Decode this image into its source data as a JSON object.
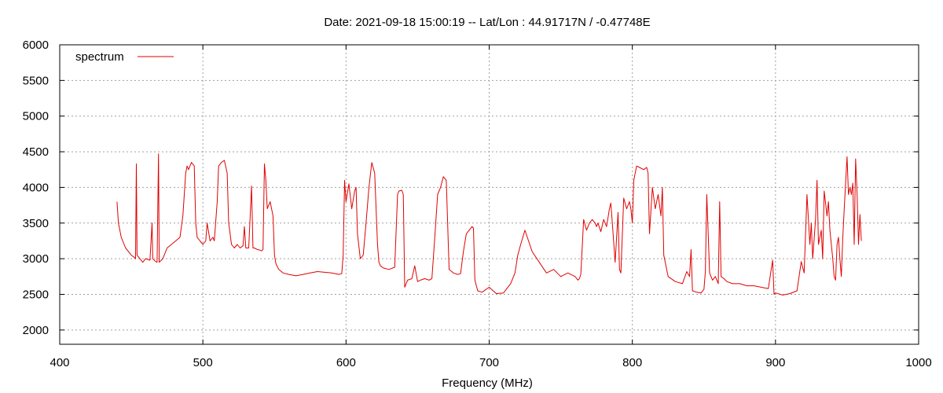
{
  "chart_data": {
    "type": "line",
    "title": "Date: 2021-09-18 15:00:19  --  Lat/Lon : 44.91717N / -0.47748E",
    "xlabel": "Frequency (MHz)",
    "ylabel": "",
    "xlim": [
      400,
      1000
    ],
    "ylim": [
      1800,
      6000
    ],
    "xticks": [
      400,
      500,
      600,
      700,
      800,
      900,
      1000
    ],
    "yticks": [
      2000,
      2500,
      3000,
      3500,
      4000,
      4500,
      5000,
      5500,
      6000
    ],
    "grid": true,
    "legend_position": "top-left",
    "series": [
      {
        "name": "spectrum",
        "color": "#e00000",
        "x": [
          440,
          441,
          443,
          446,
          450,
          452,
          453,
          453.5,
          454,
          456,
          458,
          460,
          463,
          464.5,
          465,
          467,
          468,
          469,
          469.5,
          470,
          472,
          475,
          478,
          481,
          484,
          486,
          487,
          488,
          489,
          490,
          492,
          494,
          495,
          496,
          498,
          500,
          502,
          503,
          505,
          507,
          508,
          510,
          511,
          513,
          515,
          517,
          518,
          520,
          522,
          524,
          526,
          528,
          529,
          530,
          532,
          534,
          535,
          536,
          538,
          540,
          541,
          542,
          543,
          544,
          545,
          547,
          549,
          550,
          551,
          553,
          556,
          560,
          565,
          570,
          575,
          580,
          585,
          590,
          595,
          597,
          598,
          599,
          600,
          602,
          604,
          606,
          607,
          608,
          610,
          612,
          614,
          616,
          618,
          620,
          622,
          623,
          624,
          626,
          630,
          634,
          636,
          637,
          639,
          640,
          641,
          643,
          646,
          648,
          650,
          652,
          655,
          658,
          660,
          662,
          664,
          666,
          668,
          670,
          672,
          675,
          678,
          680,
          682,
          684,
          686,
          688,
          689,
          690,
          692,
          695,
          700,
          705,
          710,
          715,
          718,
          720,
          722,
          725,
          730,
          735,
          740,
          745,
          750,
          755,
          760,
          762,
          763,
          764,
          766,
          768,
          770,
          772,
          774,
          775,
          776,
          778,
          780,
          782,
          784,
          785,
          786,
          788,
          790,
          791,
          792,
          794,
          796,
          798,
          799,
          800,
          801,
          803,
          805,
          808,
          810,
          811,
          812,
          814,
          816,
          818,
          820,
          821,
          822,
          825,
          830,
          835,
          838,
          840,
          841,
          842,
          845,
          848,
          850,
          851,
          852,
          854,
          856,
          858,
          860,
          861,
          862,
          864,
          866,
          870,
          875,
          880,
          885,
          890,
          895,
          898,
          899,
          900,
          905,
          910,
          915,
          918,
          920,
          922,
          924,
          925,
          926,
          928,
          929,
          930,
          932,
          933,
          934,
          936,
          937,
          938,
          940,
          941,
          942,
          943,
          944,
          945,
          946,
          947,
          948,
          950,
          951,
          952,
          953,
          954,
          955,
          956,
          957,
          958,
          959,
          960
        ],
        "values": [
          3800,
          3500,
          3300,
          3150,
          3050,
          3020,
          3000,
          4330,
          3050,
          3000,
          2950,
          3000,
          2980,
          3500,
          3000,
          2960,
          2950,
          4470,
          2950,
          2960,
          3000,
          3150,
          3200,
          3250,
          3300,
          3600,
          3900,
          4200,
          4300,
          4250,
          4350,
          4300,
          3500,
          3300,
          3250,
          3200,
          3250,
          3500,
          3250,
          3300,
          3250,
          3800,
          4300,
          4350,
          4380,
          4200,
          3500,
          3200,
          3150,
          3200,
          3150,
          3180,
          3450,
          3150,
          3150,
          4020,
          3150,
          3150,
          3130,
          3120,
          3110,
          3130,
          4330,
          4100,
          3700,
          3800,
          3600,
          3050,
          2930,
          2850,
          2800,
          2780,
          2760,
          2780,
          2800,
          2820,
          2810,
          2800,
          2780,
          2790,
          3050,
          4100,
          3800,
          4050,
          3700,
          3950,
          4000,
          3350,
          3000,
          3050,
          3500,
          4000,
          4350,
          4200,
          3200,
          2950,
          2900,
          2870,
          2850,
          2880,
          3900,
          3950,
          3960,
          3900,
          2600,
          2700,
          2720,
          2900,
          2680,
          2700,
          2720,
          2700,
          2720,
          3300,
          3900,
          4000,
          4150,
          4100,
          2850,
          2800,
          2780,
          2790,
          3100,
          3350,
          3400,
          3450,
          3430,
          2700,
          2550,
          2530,
          2600,
          2510,
          2520,
          2650,
          2800,
          3050,
          3200,
          3400,
          3100,
          2950,
          2800,
          2850,
          2750,
          2800,
          2750,
          2700,
          2720,
          2780,
          3550,
          3400,
          3500,
          3550,
          3500,
          3450,
          3500,
          3380,
          3550,
          3450,
          3700,
          3780,
          3500,
          2950,
          3650,
          2850,
          2800,
          3850,
          3700,
          3800,
          3700,
          3500,
          4100,
          4300,
          4280,
          4250,
          4280,
          4200,
          3350,
          4000,
          3700,
          3900,
          3600,
          4000,
          3050,
          2750,
          2680,
          2650,
          2820,
          2750,
          3130,
          2550,
          2530,
          2520,
          2570,
          2820,
          3900,
          2800,
          2700,
          2750,
          2650,
          3800,
          2750,
          2720,
          2680,
          2650,
          2650,
          2620,
          2620,
          2600,
          2580,
          2980,
          2500,
          2520,
          2490,
          2510,
          2550,
          2960,
          2800,
          3900,
          3200,
          3500,
          3000,
          3550,
          4100,
          3200,
          3400,
          3000,
          3950,
          3600,
          3800,
          3400,
          3000,
          2750,
          2700,
          3200,
          3300,
          3000,
          2750,
          3300,
          3700,
          4430,
          3900,
          4000,
          3900,
          4060,
          3200,
          4400,
          3900,
          3200,
          3620,
          3250
        ]
      }
    ]
  }
}
